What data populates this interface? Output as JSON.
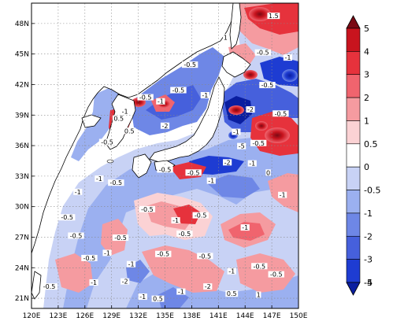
{
  "map": {
    "lon_range": [
      120,
      150
    ],
    "lat_range": [
      20,
      50
    ],
    "lon_ticks": [
      {
        "value": 120,
        "label": "120E"
      },
      {
        "value": 123,
        "label": "123E"
      },
      {
        "value": 126,
        "label": "126E"
      },
      {
        "value": 129,
        "label": "129E"
      },
      {
        "value": 132,
        "label": "132E"
      },
      {
        "value": 135,
        "label": "135E"
      },
      {
        "value": 138,
        "label": "138E"
      },
      {
        "value": 141,
        "label": "141E"
      },
      {
        "value": 144,
        "label": "144E"
      },
      {
        "value": 147,
        "label": "147E"
      },
      {
        "value": 150,
        "label": "150E"
      }
    ],
    "lat_ticks": [
      {
        "value": 21,
        "label": "21N"
      },
      {
        "value": 24,
        "label": "24N"
      },
      {
        "value": 27,
        "label": "27N"
      },
      {
        "value": 30,
        "label": "30N"
      },
      {
        "value": 33,
        "label": "33N"
      },
      {
        "value": 36,
        "label": "36N"
      },
      {
        "value": 39,
        "label": "39N"
      },
      {
        "value": 42,
        "label": "42N"
      },
      {
        "value": 45,
        "label": "45N"
      },
      {
        "value": 48,
        "label": "48N"
      }
    ],
    "gridlines": "dotted",
    "colorbar": {
      "levels": [
        "5",
        "4",
        "3",
        "2",
        "1",
        "0.5",
        "0",
        "-0.5",
        "-1",
        "-2",
        "-3",
        "-4",
        "-5"
      ],
      "colors": [
        "#7a0a14",
        "#c8141e",
        "#e6323c",
        "#f0646e",
        "#f59ba0",
        "#fbd2d4",
        "#ffffff",
        "#c8d2f5",
        "#9bb0f0",
        "#6e87e6",
        "#4660dc",
        "#1e3cd2",
        "#0a1ea0"
      ],
      "extend": "both",
      "position": "right"
    },
    "contour_labels": [
      {
        "text": "-0.5",
        "lon": 136.5,
        "lat": 41.3
      },
      {
        "text": "-0.5",
        "lon": 137.8,
        "lat": 43.8
      },
      {
        "text": "-1",
        "lon": 134.5,
        "lat": 40.2
      },
      {
        "text": "-0.5",
        "lon": 132.8,
        "lat": 40.6
      },
      {
        "text": "-1",
        "lon": 130.5,
        "lat": 39.2
      },
      {
        "text": "0.5",
        "lon": 129.8,
        "lat": 38.5
      },
      {
        "text": "0.5",
        "lon": 131.0,
        "lat": 37.3
      },
      {
        "text": "-2",
        "lon": 135.0,
        "lat": 37.8
      },
      {
        "text": "-0.5",
        "lon": 128.5,
        "lat": 36.2
      },
      {
        "text": "-1",
        "lon": 139.5,
        "lat": 40.8
      },
      {
        "text": "1",
        "lon": 141.8,
        "lat": 46.5
      },
      {
        "text": "1.5",
        "lon": 147.2,
        "lat": 48.6
      },
      {
        "text": "-0.5",
        "lon": 146.0,
        "lat": 45.0
      },
      {
        "text": "-1",
        "lon": 148.8,
        "lat": 44.5
      },
      {
        "text": "-2",
        "lon": 144.6,
        "lat": 39.4
      },
      {
        "text": "-0.5",
        "lon": 146.5,
        "lat": 41.8
      },
      {
        "text": "-0.5",
        "lon": 148.0,
        "lat": 39.0
      },
      {
        "text": "-1",
        "lon": 143.0,
        "lat": 37.2
      },
      {
        "text": "-0.5",
        "lon": 145.5,
        "lat": 36.1
      },
      {
        "text": "-5",
        "lon": 143.6,
        "lat": 35.8
      },
      {
        "text": "-2",
        "lon": 142.0,
        "lat": 34.2
      },
      {
        "text": "-1",
        "lon": 144.8,
        "lat": 34.1
      },
      {
        "text": "-0.5",
        "lon": 138.2,
        "lat": 33.2
      },
      {
        "text": "-0.5",
        "lon": 135.0,
        "lat": 33.5
      },
      {
        "text": "-1",
        "lon": 140.2,
        "lat": 32.4
      },
      {
        "text": "0",
        "lon": 146.6,
        "lat": 33.2
      },
      {
        "text": "-1",
        "lon": 148.2,
        "lat": 31.0
      },
      {
        "text": "-0.5",
        "lon": 129.5,
        "lat": 32.2
      },
      {
        "text": "-1",
        "lon": 127.6,
        "lat": 32.6
      },
      {
        "text": "-0.5",
        "lon": 124.0,
        "lat": 28.8
      },
      {
        "text": "-1",
        "lon": 125.2,
        "lat": 31.3
      },
      {
        "text": "-0.5",
        "lon": 133.0,
        "lat": 29.6
      },
      {
        "text": "-1",
        "lon": 136.2,
        "lat": 28.5
      },
      {
        "text": "-0.5",
        "lon": 139.0,
        "lat": 29.0
      },
      {
        "text": "-0.5",
        "lon": 137.2,
        "lat": 27.2
      },
      {
        "text": "-1",
        "lon": 144.0,
        "lat": 27.8
      },
      {
        "text": "-0.5",
        "lon": 130.0,
        "lat": 26.8
      },
      {
        "text": "-1",
        "lon": 128.5,
        "lat": 25.3
      },
      {
        "text": "-0.5",
        "lon": 126.5,
        "lat": 24.8
      },
      {
        "text": "-1",
        "lon": 131.2,
        "lat": 24.2
      },
      {
        "text": "-0.5",
        "lon": 134.8,
        "lat": 25.2
      },
      {
        "text": "-0.5",
        "lon": 139.5,
        "lat": 25.0
      },
      {
        "text": "-1",
        "lon": 142.5,
        "lat": 23.5
      },
      {
        "text": "-0.5",
        "lon": 145.6,
        "lat": 24.0
      },
      {
        "text": "-2",
        "lon": 130.5,
        "lat": 22.5
      },
      {
        "text": "-1",
        "lon": 127.0,
        "lat": 22.4
      },
      {
        "text": "-0.5",
        "lon": 122.0,
        "lat": 22.0
      },
      {
        "text": "-1",
        "lon": 132.5,
        "lat": 21.0
      },
      {
        "text": "0.5",
        "lon": 134.2,
        "lat": 20.8
      },
      {
        "text": "-1",
        "lon": 136.8,
        "lat": 21.5
      },
      {
        "text": "-2",
        "lon": 139.8,
        "lat": 22.0
      },
      {
        "text": "0.5",
        "lon": 142.5,
        "lat": 21.3
      },
      {
        "text": "1",
        "lon": 145.5,
        "lat": 21.2
      },
      {
        "text": "-0.5",
        "lon": 147.5,
        "lat": 23.2
      },
      {
        "text": "-0.5",
        "lon": 125.0,
        "lat": 27.0
      }
    ]
  }
}
